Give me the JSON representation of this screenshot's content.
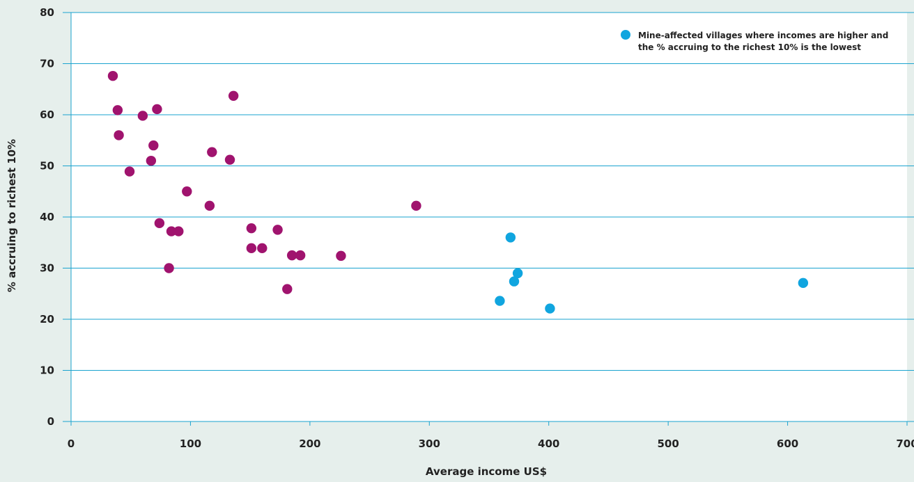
{
  "chart_data": {
    "type": "scatter",
    "title": "",
    "xlabel": "Average income US$",
    "ylabel": "% accruing to richest 10%",
    "xlim": [
      0,
      700
    ],
    "ylim": [
      0,
      80
    ],
    "x_ticks": [
      0,
      100,
      200,
      300,
      400,
      500,
      600,
      700
    ],
    "y_ticks": [
      0,
      10,
      20,
      30,
      40,
      50,
      60,
      70,
      80
    ],
    "grid": "horizontal",
    "legend_position": "top-right",
    "series": [
      {
        "color": "#a0136e",
        "points": [
          {
            "x": 35,
            "y": 67.6
          },
          {
            "x": 39,
            "y": 60.9
          },
          {
            "x": 40,
            "y": 56.0
          },
          {
            "x": 49,
            "y": 48.9
          },
          {
            "x": 60,
            "y": 59.8
          },
          {
            "x": 67,
            "y": 51.0
          },
          {
            "x": 69,
            "y": 54.0
          },
          {
            "x": 72,
            "y": 61.1
          },
          {
            "x": 74,
            "y": 38.8
          },
          {
            "x": 82,
            "y": 30.0
          },
          {
            "x": 84,
            "y": 37.2
          },
          {
            "x": 90,
            "y": 37.2
          },
          {
            "x": 97,
            "y": 45.0
          },
          {
            "x": 116,
            "y": 42.2
          },
          {
            "x": 118,
            "y": 52.7
          },
          {
            "x": 133,
            "y": 51.2
          },
          {
            "x": 136,
            "y": 63.7
          },
          {
            "x": 151,
            "y": 37.8
          },
          {
            "x": 151,
            "y": 33.9
          },
          {
            "x": 160,
            "y": 33.9
          },
          {
            "x": 173,
            "y": 37.5
          },
          {
            "x": 181,
            "y": 25.9
          },
          {
            "x": 185,
            "y": 32.5
          },
          {
            "x": 192,
            "y": 32.5
          },
          {
            "x": 226,
            "y": 32.4
          },
          {
            "x": 289,
            "y": 42.2
          }
        ]
      },
      {
        "name": "Mine-affected villages where incomes are higher and the % accruing to the richest 10% is the lowest",
        "color": "#10a5df",
        "points": [
          {
            "x": 359,
            "y": 23.6
          },
          {
            "x": 368,
            "y": 36.0
          },
          {
            "x": 371,
            "y": 27.4
          },
          {
            "x": 374,
            "y": 29.0
          },
          {
            "x": 401,
            "y": 22.1
          },
          {
            "x": 613,
            "y": 27.1
          }
        ]
      }
    ]
  },
  "legend": {
    "line1": "Mine-affected villages where incomes are higher and",
    "line2": "the % accruing to the richest 10% is the lowest"
  }
}
